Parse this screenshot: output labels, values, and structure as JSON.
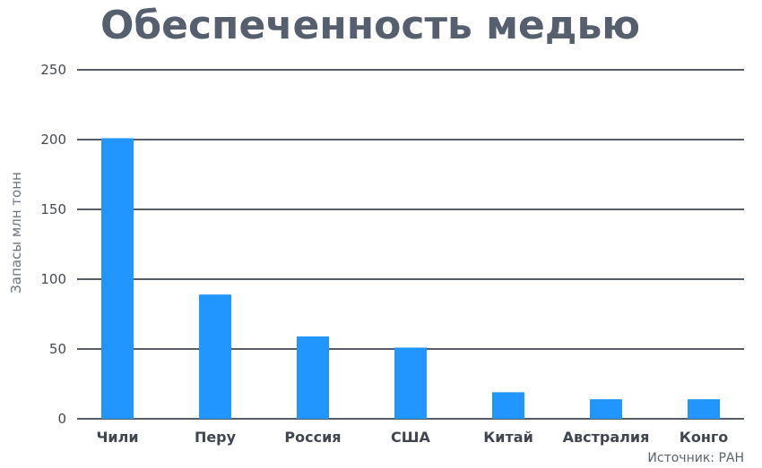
{
  "chart_data": {
    "type": "bar",
    "title": "Обеспеченность медью",
    "ylabel": "Запасы млн тонн",
    "xlabel": "",
    "categories": [
      "Чили",
      "Перу",
      "Россия",
      "США",
      "Китай",
      "Австралия",
      "Конго"
    ],
    "values": [
      201,
      89,
      59,
      51,
      19,
      14,
      14
    ],
    "ylim": [
      0,
      250
    ],
    "yticks": [
      0,
      50,
      100,
      150,
      200,
      250
    ],
    "ytick_labels": [
      "0",
      "50",
      "100",
      "150",
      "200",
      "250"
    ],
    "grid": true,
    "legend": "none",
    "source": "Источник: РАН",
    "colors": {
      "bar": "#2196ff",
      "grid": "#545d68",
      "title": "#555f6d"
    }
  }
}
